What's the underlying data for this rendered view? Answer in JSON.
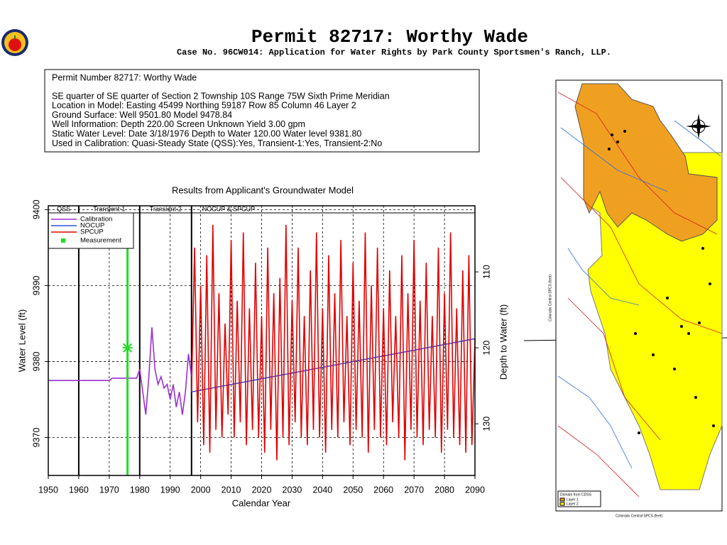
{
  "header": {
    "title": "Permit 82717:  Worthy Wade",
    "subtitle": "Case No. 96CW014: Application for Water Rights by Park County Sportsmen's Ranch, LLP."
  },
  "info": {
    "lines": [
      "Permit Number 82717: Worthy Wade",
      "SE quarter of SE quarter of Section 2 Township 10S Range 75W Sixth Prime Meridian",
      "Location in Model: Easting 45499 Northing  59187 Row  85 Column 46 Layer 2",
      "Ground Surface: Well  9501.80 Model  9478.84",
      "Well Information: Depth    220.00 Screen Unknown Yield       3.00 gpm",
      "Static Water Level: Date  3/18/1976 Depth to Water    120.00 Water level  9381.80",
      "Used in Calibration: Quasi-Steady State (QSS):Yes, Transient-1:Yes, Transient-2:No"
    ]
  },
  "chart_data": {
    "type": "line",
    "title": "Results from Applicant's Groundwater Model",
    "x_label": "Calendar Year",
    "y_label": "Water Level (ft)",
    "y2_label": "Depth to Water (ft)",
    "xlim": [
      1950,
      2090
    ],
    "xticks": [
      1950,
      1960,
      1970,
      1980,
      1990,
      2000,
      2010,
      2020,
      2030,
      2040,
      2050,
      2060,
      2070,
      2080,
      2090
    ],
    "ylim": [
      9365,
      9400.5
    ],
    "yticks": [
      9370,
      9380,
      9390,
      9400
    ],
    "y2lim": [
      136.8,
      101.3
    ],
    "y2ticks": [
      110,
      120,
      130
    ],
    "grid": true,
    "zones": [
      {
        "label": "QSS",
        "start": 1950,
        "end": 1960
      },
      {
        "label": "Transient-1",
        "start": 1960,
        "end": 1980
      },
      {
        "label": "Transient-2",
        "start": 1980,
        "end": 1997
      },
      {
        "label": "NOCUP & SPCUP",
        "start": 1997,
        "end": 2090
      }
    ],
    "series": [
      {
        "name": "Calibration",
        "color": "#9b30d0",
        "x": [
          1950,
          1970,
          1971,
          1979,
          1980,
          1981,
          1982,
          1983,
          1984,
          1985,
          1986,
          1987,
          1988,
          1989,
          1990,
          1991,
          1992,
          1993,
          1994,
          1995,
          1996,
          1997
        ],
        "values": [
          9377.5,
          9377.5,
          9377.8,
          9377.8,
          9379,
          9376,
          9373,
          9378,
          9384.5,
          9379,
          9377,
          9378,
          9376.5,
          9377,
          9375,
          9377,
          9374,
          9376,
          9373,
          9376,
          9381,
          9378
        ]
      },
      {
        "name": "NOCUP",
        "color": "#3050e0",
        "x": [
          1997,
          2090
        ],
        "values": [
          9376,
          9383
        ]
      },
      {
        "name": "SPCUP",
        "color": "#e00000",
        "x": [
          1997,
          1998,
          1999,
          2000,
          2001,
          2002,
          2003,
          2004,
          2005,
          2006,
          2007,
          2008,
          2009,
          2010,
          2011,
          2012,
          2013,
          2014,
          2015,
          2016,
          2017,
          2018,
          2019,
          2020,
          2021,
          2022,
          2023,
          2024,
          2025,
          2026,
          2027,
          2028,
          2029,
          2030,
          2031,
          2032,
          2033,
          2034,
          2035,
          2036,
          2037,
          2038,
          2039,
          2040,
          2041,
          2042,
          2043,
          2044,
          2045,
          2046,
          2047,
          2048,
          2049,
          2050,
          2051,
          2052,
          2053,
          2054,
          2055,
          2056,
          2057,
          2058,
          2059,
          2060,
          2061,
          2062,
          2063,
          2064,
          2065,
          2066,
          2067,
          2068,
          2069,
          2070,
          2071,
          2072,
          2073,
          2074,
          2075,
          2076,
          2077,
          2078,
          2079,
          2080,
          2081,
          2082,
          2083,
          2084,
          2085,
          2086,
          2087,
          2088,
          2089,
          2090
        ],
        "values": [
          9376,
          9395,
          9372,
          9390,
          9369,
          9394,
          9368,
          9398,
          9371,
          9389,
          9370,
          9385,
          9373,
          9396,
          9370,
          9388,
          9372,
          9397,
          9369,
          9387,
          9371,
          9393,
          9370,
          9386,
          9368,
          9395,
          9371,
          9389,
          9367,
          9391,
          9370,
          9398,
          9369,
          9388,
          9372,
          9395,
          9370,
          9386,
          9369,
          9392,
          9371,
          9397,
          9370,
          9387,
          9368,
          9394,
          9371,
          9389,
          9370,
          9396,
          9372,
          9386,
          9369,
          9393,
          9371,
          9388,
          9370,
          9397,
          9368,
          9390,
          9371,
          9395,
          9370,
          9387,
          9369,
          9392,
          9372,
          9386,
          9370,
          9394,
          9367,
          9389,
          9371,
          9396,
          9370,
          9388,
          9369,
          9393,
          9371,
          9386,
          9370,
          9395,
          9368,
          9389,
          9371,
          9397,
          9370,
          9387,
          9369,
          9392,
          9368,
          9394,
          9369,
          9383
        ]
      }
    ],
    "measurement": {
      "name": "Measurement",
      "color": "#22dd22",
      "x": 1976,
      "value": 9381.8
    }
  },
  "map": {
    "legend_title": "Domain from CDSS",
    "legend_items": [
      "Layer 1",
      "Layer 2"
    ],
    "x_label": "Colorado Central SPCS (feet)",
    "y_label": "Colorado Central SPCS (feet)"
  }
}
